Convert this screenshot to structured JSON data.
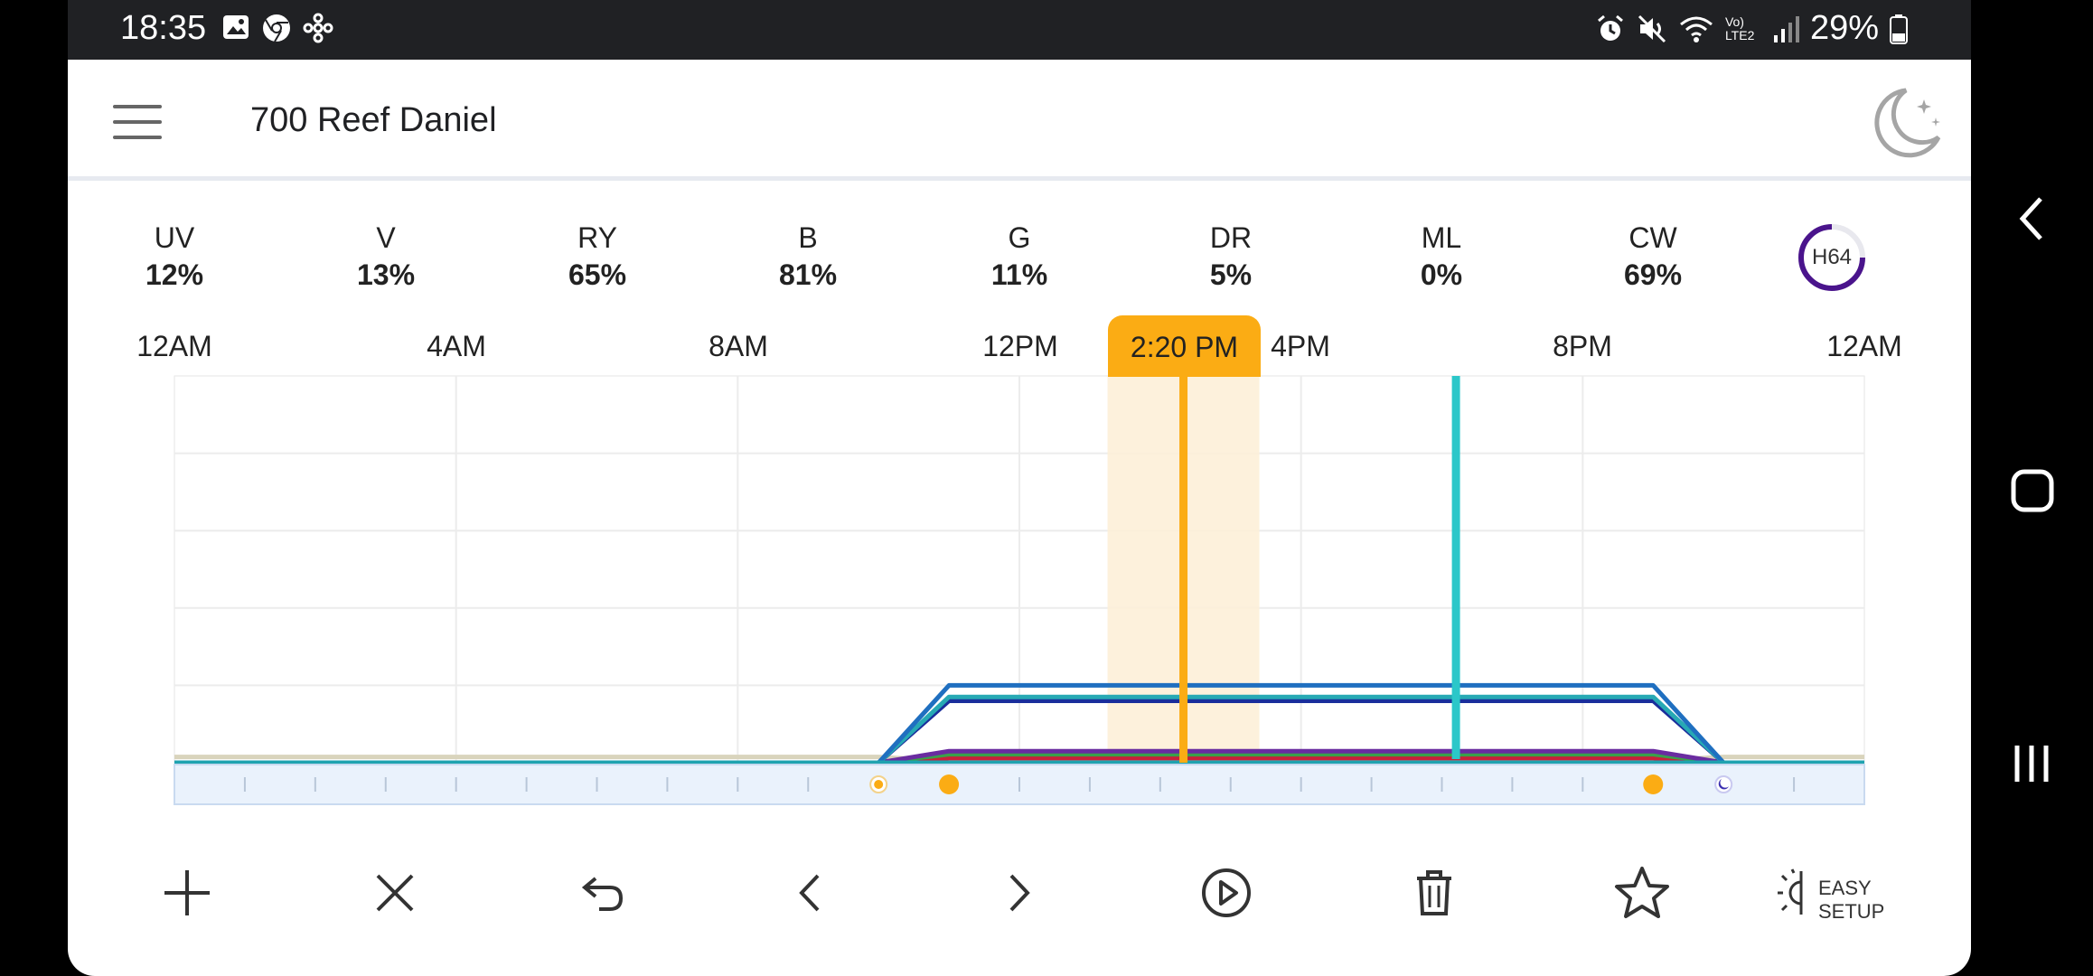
{
  "status": {
    "time": "18:35",
    "battery": "29%",
    "network": "Vo) LTE2"
  },
  "app": {
    "title": "700 Reef Daniel"
  },
  "channels": [
    {
      "name": "UV",
      "value": "12%"
    },
    {
      "name": "V",
      "value": "13%"
    },
    {
      "name": "RY",
      "value": "65%"
    },
    {
      "name": "B",
      "value": "81%"
    },
    {
      "name": "G",
      "value": "11%"
    },
    {
      "name": "DR",
      "value": "5%"
    },
    {
      "name": "ML",
      "value": "0%"
    },
    {
      "name": "CW",
      "value": "69%"
    }
  ],
  "device_badge": "H64",
  "timeline": {
    "labels": [
      "12AM",
      "4AM",
      "8AM",
      "12PM",
      "4PM",
      "8PM",
      "12AM"
    ],
    "current_time": "2:20 PM"
  },
  "chart_data": {
    "type": "line",
    "x_unit": "hours",
    "x_range": [
      0,
      24
    ],
    "y_range": [
      0,
      100
    ],
    "current_hour": 14.33,
    "marker_hour": 18.2,
    "series": [
      {
        "color": "#1f6fc0",
        "points": [
          [
            0,
            0
          ],
          [
            10,
            0
          ],
          [
            11,
            20
          ],
          [
            21,
            20
          ],
          [
            22,
            0
          ],
          [
            24,
            0
          ]
        ]
      },
      {
        "color": "#27a9b4",
        "points": [
          [
            0,
            0
          ],
          [
            10,
            0
          ],
          [
            11,
            17
          ],
          [
            21,
            17
          ],
          [
            22,
            0
          ],
          [
            24,
            0
          ]
        ]
      },
      {
        "color": "#1a2e9c",
        "points": [
          [
            0,
            0
          ],
          [
            10,
            0
          ],
          [
            11,
            16
          ],
          [
            21,
            16
          ],
          [
            22,
            0
          ],
          [
            24,
            0
          ]
        ]
      },
      {
        "color": "#6a2ca0",
        "points": [
          [
            0,
            0
          ],
          [
            10,
            0
          ],
          [
            11,
            3
          ],
          [
            21,
            3
          ],
          [
            22,
            0
          ],
          [
            24,
            0
          ]
        ]
      },
      {
        "color": "#3aa04a",
        "points": [
          [
            0,
            0
          ],
          [
            10,
            0
          ],
          [
            11,
            2.2
          ],
          [
            21,
            2.2
          ],
          [
            22,
            0
          ],
          [
            24,
            0
          ]
        ]
      },
      {
        "color": "#c8203a",
        "points": [
          [
            0,
            0
          ],
          [
            10,
            0
          ],
          [
            11,
            1.2
          ],
          [
            21,
            1.2
          ],
          [
            22,
            0
          ],
          [
            24,
            0
          ]
        ]
      },
      {
        "color": "#d9d4bc",
        "points": [
          [
            0,
            1.5
          ],
          [
            10,
            1.5
          ],
          [
            11,
            0.5
          ],
          [
            21,
            0.5
          ],
          [
            22,
            1.5
          ],
          [
            24,
            1.5
          ]
        ]
      }
    ],
    "timeline_markers": [
      {
        "hour": 10.0,
        "kind": "sunrise"
      },
      {
        "hour": 11.0,
        "kind": "sun"
      },
      {
        "hour": 21.0,
        "kind": "sun"
      },
      {
        "hour": 22.0,
        "kind": "moon"
      }
    ]
  },
  "toolbar": {
    "easy_setup_line1": "EASY",
    "easy_setup_line2": "SETUP"
  },
  "colors": {
    "accent": "#fbac14",
    "marker": "#2bc7c9",
    "timeline_bg": "#eaf2fc"
  }
}
